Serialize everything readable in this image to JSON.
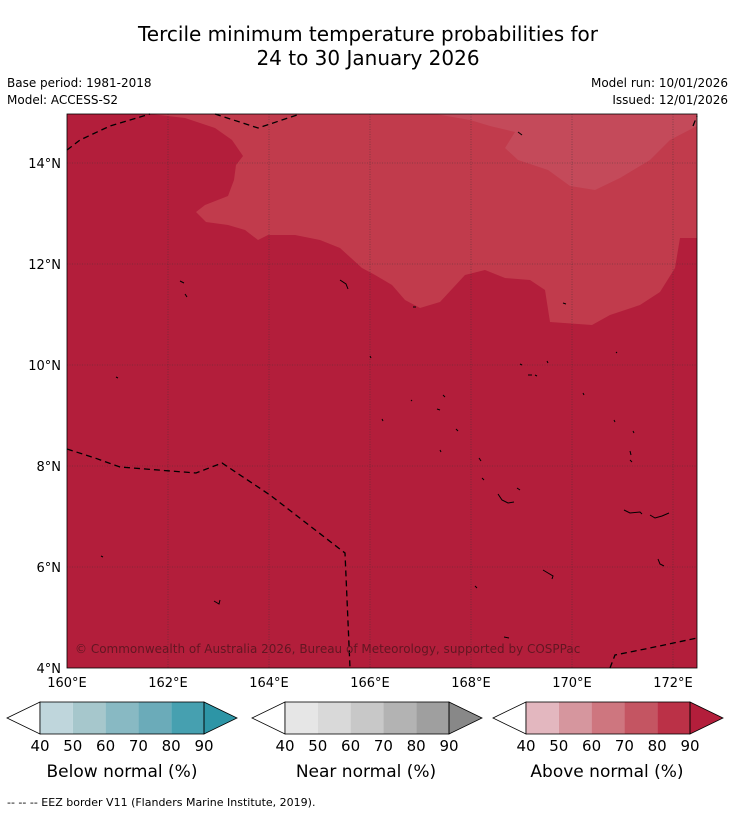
{
  "title_line1": "Tercile minimum temperature probabilities for",
  "title_line2": "24 to 30 January 2026",
  "base_period": "Base period: 1981-2018",
  "model": "Model: ACCESS-S2",
  "model_run": "Model run: 10/01/2026",
  "issued": "Issued: 12/01/2026",
  "copyright": "© Commonwealth of Australia 2026, Bureau of Meteorology, supported by COSPPac",
  "map": {
    "lon_ticks": [
      "160°E",
      "162°E",
      "164°E",
      "166°E",
      "168°E",
      "170°E",
      "172°E"
    ],
    "lat_ticks": [
      "14°N",
      "12°N",
      "10°N",
      "8°N",
      "6°N",
      "4°N"
    ],
    "colors": {
      "above_80_90": "#b31e3b",
      "above_70_80": "#c13b4c"
    }
  },
  "legends": [
    {
      "label": "Below normal (%)",
      "ticks": [
        "40",
        "50",
        "60",
        "70",
        "80",
        "90"
      ],
      "colors": [
        "#ffffff",
        "#bfd6dc",
        "#a6c7cc",
        "#88b9c3",
        "#6babb9",
        "#46a0b0",
        "#2d95a6"
      ]
    },
    {
      "label": "Near normal (%)",
      "ticks": [
        "40",
        "50",
        "60",
        "70",
        "80",
        "90"
      ],
      "colors": [
        "#ffffff",
        "#e6e6e6",
        "#d9d9d9",
        "#c8c8c8",
        "#b3b3b3",
        "#9f9f9f",
        "#888888"
      ]
    },
    {
      "label": "Above normal (%)",
      "ticks": [
        "40",
        "50",
        "60",
        "70",
        "80",
        "90"
      ],
      "colors": [
        "#ffffff",
        "#e3b7bf",
        "#d6969e",
        "#ce767f",
        "#c45562",
        "#bb3147",
        "#b31e3b"
      ]
    }
  ],
  "footnote": "--  --  -- EEZ border V11 (Flanders Marine Institute, 2019)."
}
